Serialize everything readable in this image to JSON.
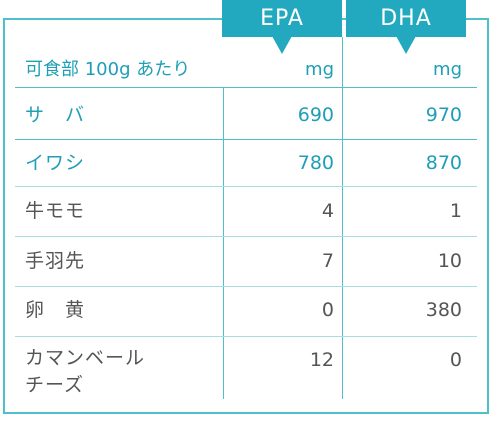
{
  "header": {
    "row_label": "可食部 100g あたり",
    "epa_label": "EPA",
    "dha_label": "DHA",
    "epa_unit": "mg",
    "dha_unit": "mg"
  },
  "rows": [
    {
      "name": "サ　バ",
      "epa": "690",
      "dha": "970"
    },
    {
      "name": "イワシ",
      "epa": "780",
      "dha": "870"
    },
    {
      "name": "牛モモ",
      "epa": "4",
      "dha": "1"
    },
    {
      "name": "手羽先",
      "epa": "7",
      "dha": "10"
    },
    {
      "name": "卵　黄",
      "epa": "0",
      "dha": "380"
    },
    {
      "name_line1": "カマンベール",
      "name_line2": "チーズ",
      "epa": "12",
      "dha": "0"
    }
  ],
  "colors": {
    "accent": "#22a9bf",
    "border": "#4fbfcc",
    "highlight_text": "#1f9fb5",
    "body_text": "#555555"
  }
}
